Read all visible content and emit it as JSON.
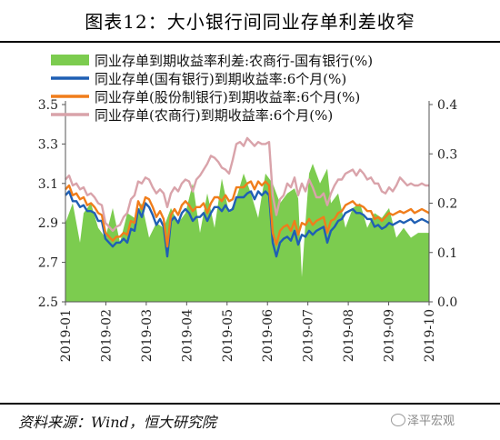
{
  "title": "图表12：大小银行间同业存单利差收窄",
  "source": "资料来源：Wind，恒大研究院",
  "watermark": "泽平宏观",
  "chart_data": {
    "type": "line",
    "legend_position": "top",
    "grid": false,
    "x_ticks": [
      "2019-01",
      "2019-02",
      "2019-03",
      "2019-04",
      "2019-05",
      "2019-06",
      "2019-07",
      "2019-08",
      "2019-09",
      "2019-10"
    ],
    "x_range": [
      0,
      200
    ],
    "left_axis": {
      "range": [
        2.5,
        3.5
      ],
      "ticks": [
        "2.5",
        "2.7",
        "2.9",
        "3.1",
        "3.3",
        "3.5"
      ]
    },
    "right_axis": {
      "range": [
        0.0,
        0.4
      ],
      "ticks": [
        "0.0",
        "0.1",
        "0.2",
        "0.3",
        "0.4"
      ]
    },
    "series": [
      {
        "name": "同业存单到期收益率利差:农商行-国有银行(%)",
        "type": "area",
        "axis": "right",
        "color": "#7ccc4f",
        "x": [
          0,
          4,
          8,
          10,
          14,
          18,
          22,
          26,
          30,
          34,
          38,
          42,
          46,
          50,
          54,
          58,
          62,
          66,
          70,
          74,
          78,
          82,
          86,
          90,
          94,
          98,
          102,
          106,
          110,
          114,
          118,
          122,
          126,
          128,
          130,
          132,
          134,
          136,
          140,
          144,
          146,
          150,
          154,
          158,
          162,
          166,
          170,
          174,
          178,
          182,
          186,
          190,
          194,
          200
        ],
        "y": [
          0.16,
          0.2,
          0.12,
          0.18,
          0.2,
          0.15,
          0.13,
          0.19,
          0.12,
          0.18,
          0.17,
          0.2,
          0.13,
          0.16,
          0.15,
          0.19,
          0.16,
          0.18,
          0.24,
          0.14,
          0.22,
          0.15,
          0.25,
          0.18,
          0.21,
          0.26,
          0.22,
          0.17,
          0.26,
          0.24,
          0.2,
          0.22,
          0.23,
          0.21,
          0.05,
          0.16,
          0.26,
          0.28,
          0.24,
          0.27,
          0.2,
          0.22,
          0.15,
          0.19,
          0.2,
          0.15,
          0.18,
          0.17,
          0.19,
          0.13,
          0.15,
          0.13,
          0.14,
          0.14
        ]
      },
      {
        "name": "同业存单(国有银行)到期收益率:6个月(%)",
        "type": "line",
        "axis": "left",
        "color": "#1f5fb4",
        "x": [
          0,
          2,
          4,
          6,
          8,
          10,
          12,
          14,
          16,
          18,
          20,
          22,
          24,
          26,
          28,
          30,
          32,
          34,
          36,
          38,
          40,
          42,
          44,
          46,
          48,
          50,
          52,
          54,
          56,
          58,
          60,
          62,
          64,
          66,
          68,
          70,
          72,
          74,
          76,
          78,
          80,
          82,
          84,
          86,
          88,
          90,
          92,
          94,
          96,
          98,
          100,
          102,
          104,
          106,
          108,
          110,
          112,
          114,
          116,
          118,
          120,
          122,
          124,
          126,
          128,
          130,
          132,
          134,
          136,
          138,
          140,
          142,
          144,
          146,
          148,
          150,
          152,
          154,
          156,
          158,
          160,
          162,
          164,
          166,
          168,
          170,
          172,
          174,
          176,
          178,
          180,
          182,
          184,
          186,
          188,
          190,
          192,
          194,
          196,
          198,
          200
        ],
        "y": [
          3.04,
          3.06,
          3.01,
          3.01,
          2.98,
          2.99,
          2.96,
          2.96,
          2.95,
          2.91,
          2.91,
          2.82,
          2.8,
          2.78,
          2.8,
          2.8,
          2.82,
          2.8,
          2.87,
          2.86,
          2.97,
          2.93,
          3.0,
          2.98,
          2.94,
          2.89,
          2.92,
          2.88,
          2.73,
          2.91,
          2.93,
          2.9,
          2.95,
          2.97,
          2.95,
          2.91,
          2.93,
          2.93,
          2.95,
          2.91,
          2.95,
          2.98,
          2.98,
          2.96,
          2.99,
          2.96,
          2.97,
          3.03,
          3.03,
          3.03,
          3.05,
          3.06,
          3.02,
          3.06,
          3.04,
          3.06,
          3.04,
          2.8,
          2.73,
          2.8,
          2.82,
          2.83,
          2.81,
          2.86,
          2.79,
          2.84,
          2.83,
          2.86,
          2.84,
          2.86,
          2.87,
          2.88,
          2.8,
          2.86,
          2.88,
          2.91,
          2.92,
          2.95,
          2.96,
          2.97,
          2.95,
          2.95,
          2.94,
          2.92,
          2.92,
          2.88,
          2.89,
          2.87,
          2.88,
          2.9,
          2.89,
          2.9,
          2.91,
          2.9,
          2.91,
          2.92,
          2.9,
          2.91,
          2.92,
          2.91,
          2.9
        ]
      },
      {
        "name": "同业存单(股份制银行)到期收益率:6个月(%)",
        "type": "line",
        "axis": "left",
        "color": "#f07d1b",
        "x": [
          0,
          2,
          4,
          6,
          8,
          10,
          12,
          14,
          16,
          18,
          20,
          22,
          24,
          26,
          28,
          30,
          32,
          34,
          36,
          38,
          40,
          42,
          44,
          46,
          48,
          50,
          52,
          54,
          56,
          58,
          60,
          62,
          64,
          66,
          68,
          70,
          72,
          74,
          76,
          78,
          80,
          82,
          84,
          86,
          88,
          90,
          92,
          94,
          96,
          98,
          100,
          102,
          104,
          106,
          108,
          110,
          112,
          114,
          116,
          118,
          120,
          122,
          124,
          126,
          128,
          130,
          132,
          134,
          136,
          138,
          140,
          142,
          144,
          146,
          148,
          150,
          152,
          154,
          156,
          158,
          160,
          162,
          164,
          166,
          168,
          170,
          172,
          174,
          176,
          178,
          180,
          182,
          184,
          186,
          188,
          190,
          192,
          194,
          196,
          198,
          200
        ],
        "y": [
          3.07,
          3.09,
          3.04,
          3.05,
          3.02,
          3.03,
          2.99,
          3.0,
          2.98,
          2.95,
          2.94,
          2.85,
          2.83,
          2.81,
          2.83,
          2.83,
          2.85,
          2.84,
          2.91,
          2.9,
          3.01,
          2.97,
          3.03,
          3.02,
          2.98,
          2.93,
          2.96,
          2.92,
          2.78,
          2.94,
          2.97,
          2.94,
          2.99,
          3.01,
          2.99,
          2.96,
          2.98,
          2.98,
          3.0,
          2.95,
          3.0,
          3.03,
          3.03,
          3.01,
          3.04,
          3.01,
          3.02,
          3.08,
          3.08,
          3.08,
          3.1,
          3.11,
          3.07,
          3.11,
          3.09,
          3.11,
          3.09,
          2.85,
          2.79,
          2.86,
          2.88,
          2.89,
          2.86,
          2.91,
          2.84,
          2.9,
          2.89,
          2.92,
          2.89,
          2.91,
          2.92,
          2.93,
          2.85,
          2.91,
          2.92,
          2.95,
          2.96,
          2.99,
          3.0,
          3.01,
          2.99,
          2.99,
          2.98,
          2.96,
          2.96,
          2.92,
          2.93,
          2.91,
          2.93,
          2.95,
          2.94,
          2.95,
          2.96,
          2.95,
          2.96,
          2.97,
          2.95,
          2.96,
          2.97,
          2.96,
          2.95
        ]
      },
      {
        "name": "同业存单(农商行)到期收益率:6个月(%)",
        "type": "line",
        "axis": "left",
        "color": "#d9a3aa",
        "x": [
          0,
          2,
          4,
          6,
          8,
          10,
          12,
          14,
          16,
          18,
          20,
          22,
          24,
          26,
          28,
          30,
          32,
          34,
          36,
          38,
          40,
          42,
          44,
          46,
          48,
          50,
          52,
          54,
          56,
          58,
          60,
          62,
          64,
          66,
          68,
          70,
          72,
          74,
          76,
          78,
          80,
          82,
          84,
          86,
          88,
          90,
          92,
          94,
          96,
          98,
          100,
          102,
          104,
          106,
          108,
          110,
          112,
          114,
          116,
          118,
          120,
          122,
          124,
          126,
          128,
          130,
          132,
          134,
          136,
          138,
          140,
          142,
          144,
          146,
          148,
          150,
          152,
          154,
          156,
          158,
          160,
          162,
          164,
          166,
          168,
          170,
          172,
          174,
          176,
          178,
          180,
          182,
          184,
          186,
          188,
          190,
          192,
          194,
          196,
          198,
          200
        ],
        "y": [
          3.12,
          3.14,
          3.09,
          3.1,
          3.07,
          3.08,
          3.04,
          3.05,
          3.03,
          3.0,
          2.99,
          2.9,
          2.88,
          2.86,
          2.88,
          2.89,
          2.93,
          2.95,
          3.02,
          3.04,
          3.11,
          3.1,
          3.13,
          3.12,
          3.08,
          3.05,
          3.07,
          3.05,
          2.98,
          3.05,
          3.08,
          3.06,
          3.1,
          3.12,
          3.11,
          3.06,
          3.12,
          3.14,
          3.17,
          3.2,
          3.24,
          3.23,
          3.21,
          3.18,
          3.17,
          3.15,
          3.22,
          3.3,
          3.31,
          3.29,
          3.33,
          3.31,
          3.29,
          3.31,
          3.3,
          3.3,
          3.31,
          3.04,
          2.94,
          3.02,
          3.04,
          3.1,
          3.08,
          3.13,
          3.04,
          3.1,
          3.06,
          3.12,
          3.08,
          3.03,
          3.03,
          3.05,
          2.99,
          3.05,
          3.09,
          3.12,
          3.12,
          3.15,
          3.16,
          3.17,
          3.14,
          3.17,
          3.15,
          3.12,
          3.13,
          3.1,
          3.1,
          3.06,
          3.05,
          3.08,
          3.06,
          3.09,
          3.13,
          3.11,
          3.09,
          3.1,
          3.09,
          3.09,
          3.1,
          3.09,
          3.09
        ]
      }
    ]
  }
}
